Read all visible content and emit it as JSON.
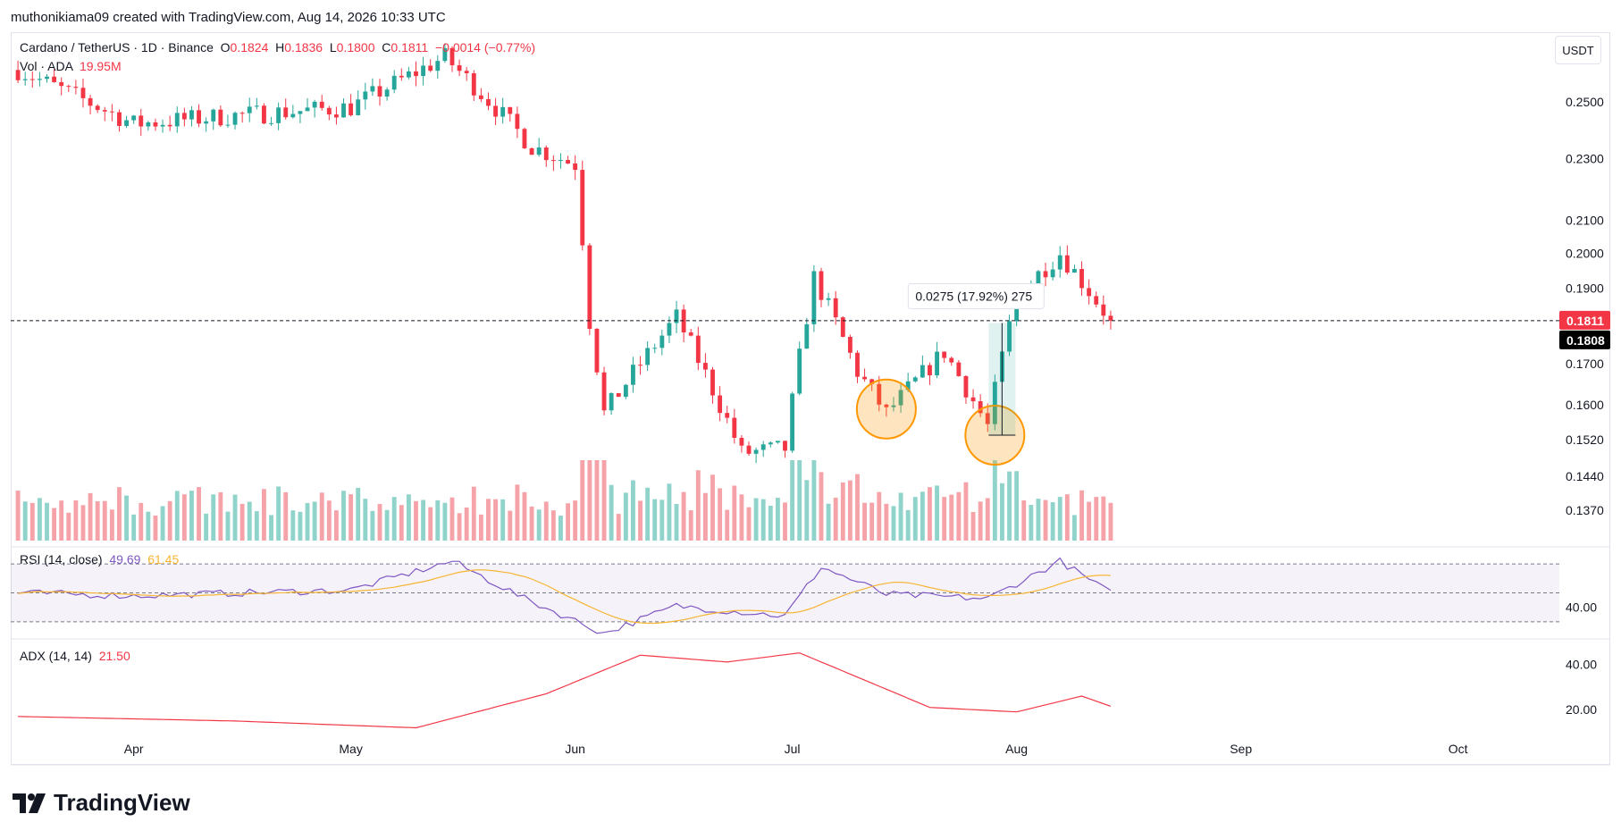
{
  "header": {
    "created_by": "muthonikiama09 created with TradingView.com, Aug 14, 2026 10:33 UTC"
  },
  "legend": {
    "symbol": "Cardano / TetherUS · 1D · Binance",
    "open_label": "O",
    "open": "0.1824",
    "high_label": "H",
    "high": "0.1836",
    "low_label": "L",
    "low": "0.1800",
    "close_label": "C",
    "close": "0.1811",
    "change": "−0.0014 (−0.77%)",
    "vol_label": "Vol · ADA",
    "vol": "19.95M"
  },
  "currency_button": "USDT",
  "price_axis": {
    "ticks": [
      "0.2500",
      "0.2300",
      "0.2100",
      "0.2000",
      "0.1900",
      "0.1700",
      "0.1600",
      "0.1520",
      "0.1440",
      "0.1370"
    ],
    "last_price": "0.1811",
    "reference_price": "0.1808"
  },
  "rsi_pane": {
    "label": "RSI (14, close)",
    "value": "49.69",
    "ma_value": "61.45",
    "tick": "40.00"
  },
  "adx_pane": {
    "label": "ADX (14, 14)",
    "value": "21.50",
    "ticks": [
      "40.00",
      "20.00"
    ]
  },
  "time_axis": {
    "labels": [
      "Apr",
      "May",
      "Jun",
      "Jul",
      "Aug",
      "Sep",
      "Oct"
    ]
  },
  "measure_tool": {
    "text": "0.0275 (17.92%) 275"
  },
  "brand": {
    "name": "TradingView"
  },
  "colors": {
    "up": "#26a69a",
    "down": "#f23645",
    "up_volume": "#8fd3cb",
    "down_volume": "#f5a3a9",
    "rsi_line": "#7e57c2",
    "rsi_ma": "#f7b531",
    "adx_line": "#f23645",
    "highlight": "#ff9800"
  },
  "chart_data": {
    "type": "candlestick",
    "title": "Cardano / TetherUS · 1D · Binance",
    "timeframe": "1D",
    "x_range": [
      "2026-03-15",
      "2026-10-15"
    ],
    "price_ylim": [
      0.131,
      0.277
    ],
    "price_scale": "log",
    "current_price": 0.1811,
    "key_points": [
      {
        "date": "2026-03-16",
        "price": 0.262
      },
      {
        "date": "2026-04-01",
        "price": 0.242
      },
      {
        "date": "2026-04-15",
        "price": 0.245
      },
      {
        "date": "2026-05-01",
        "price": 0.248
      },
      {
        "date": "2026-05-14",
        "price": 0.267
      },
      {
        "date": "2026-05-26",
        "price": 0.234
      },
      {
        "date": "2026-06-01",
        "price": 0.228
      },
      {
        "date": "2026-06-03",
        "price": 0.181
      },
      {
        "date": "2026-06-05",
        "price": 0.158
      },
      {
        "date": "2026-06-15",
        "price": 0.182
      },
      {
        "date": "2026-06-24",
        "price": 0.149
      },
      {
        "date": "2026-06-30",
        "price": 0.15
      },
      {
        "date": "2026-07-04",
        "price": 0.193
      },
      {
        "date": "2026-07-10",
        "price": 0.168
      },
      {
        "date": "2026-07-14",
        "price": 0.158
      },
      {
        "date": "2026-07-22",
        "price": 0.173
      },
      {
        "date": "2026-07-28",
        "price": 0.155
      },
      {
        "date": "2026-08-01",
        "price": 0.188
      },
      {
        "date": "2026-08-07",
        "price": 0.2
      },
      {
        "date": "2026-08-14",
        "price": 0.1811
      }
    ],
    "rsi_ylim": [
      20,
      80
    ],
    "rsi_band": [
      30,
      70
    ],
    "rsi_key_points": [
      {
        "date": "2026-03-16",
        "value": 50
      },
      {
        "date": "2026-04-01",
        "value": 48
      },
      {
        "date": "2026-05-01",
        "value": 52
      },
      {
        "date": "2026-05-15",
        "value": 72
      },
      {
        "date": "2026-05-25",
        "value": 46
      },
      {
        "date": "2026-06-05",
        "value": 22
      },
      {
        "date": "2026-06-15",
        "value": 41
      },
      {
        "date": "2026-06-30",
        "value": 34
      },
      {
        "date": "2026-07-05",
        "value": 68
      },
      {
        "date": "2026-07-14",
        "value": 49
      },
      {
        "date": "2026-07-28",
        "value": 46
      },
      {
        "date": "2026-08-07",
        "value": 72
      },
      {
        "date": "2026-08-14",
        "value": 49.69
      }
    ],
    "adx_ylim": [
      0,
      50
    ],
    "adx_key_points": [
      {
        "date": "2026-03-16",
        "value": 17
      },
      {
        "date": "2026-04-15",
        "value": 15
      },
      {
        "date": "2026-05-10",
        "value": 12
      },
      {
        "date": "2026-05-28",
        "value": 27
      },
      {
        "date": "2026-06-10",
        "value": 44
      },
      {
        "date": "2026-06-22",
        "value": 41
      },
      {
        "date": "2026-07-02",
        "value": 45
      },
      {
        "date": "2026-07-20",
        "value": 21
      },
      {
        "date": "2026-08-01",
        "value": 19
      },
      {
        "date": "2026-08-10",
        "value": 26
      },
      {
        "date": "2026-08-14",
        "value": 21.5
      }
    ],
    "highlighted_lows": [
      {
        "date": "2026-07-14",
        "price": 0.159
      },
      {
        "date": "2026-07-29",
        "price": 0.153
      }
    ],
    "measurement": {
      "from_price": 0.153,
      "to_price": 0.1805,
      "change": 0.0275,
      "percent": 17.92
    }
  }
}
